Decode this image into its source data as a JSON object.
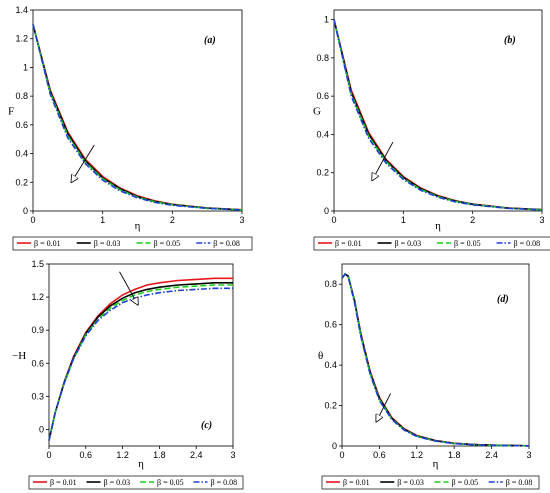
{
  "chart_data": [
    {
      "type": "line",
      "panel_label": "(a)",
      "xlabel": "η",
      "ylabel": "F",
      "xlim": [
        0,
        3
      ],
      "ylim": [
        0,
        1.4
      ],
      "xticks": [
        "0",
        "1",
        "2",
        "3"
      ],
      "yticks": [
        "0",
        "0.2",
        "0.4",
        "0.6",
        "0.8",
        "1",
        "1.2",
        "1.4"
      ],
      "x": [
        0,
        0.25,
        0.5,
        0.75,
        1.0,
        1.25,
        1.5,
        1.75,
        2.0,
        2.5,
        3.0
      ],
      "series": [
        {
          "name": "β = 0.01",
          "values": [
            1.3,
            0.84,
            0.55,
            0.36,
            0.24,
            0.16,
            0.105,
            0.07,
            0.047,
            0.021,
            0.009
          ]
        },
        {
          "name": "β = 0.03",
          "values": [
            1.3,
            0.83,
            0.54,
            0.35,
            0.23,
            0.155,
            0.1,
            0.067,
            0.045,
            0.02,
            0.008
          ]
        },
        {
          "name": "β = 0.05",
          "values": [
            1.3,
            0.82,
            0.525,
            0.34,
            0.225,
            0.148,
            0.097,
            0.064,
            0.043,
            0.019,
            0.008
          ]
        },
        {
          "name": "β = 0.08",
          "values": [
            1.3,
            0.81,
            0.51,
            0.33,
            0.215,
            0.14,
            0.092,
            0.06,
            0.04,
            0.018,
            0.007
          ]
        }
      ],
      "arrow": {
        "from": [
          0.88,
          0.46
        ],
        "to": [
          0.55,
          0.2
        ]
      },
      "legend_position": "below"
    },
    {
      "type": "line",
      "panel_label": "(b)",
      "xlabel": "η",
      "ylabel": "G",
      "xlim": [
        0,
        3
      ],
      "ylim": [
        0,
        1.05
      ],
      "xticks": [
        "0",
        "1",
        "2",
        "3"
      ],
      "yticks": [
        "0",
        "0.2",
        "0.4",
        "0.6",
        "0.8",
        "1"
      ],
      "x": [
        0,
        0.25,
        0.5,
        0.75,
        1.0,
        1.25,
        1.5,
        1.75,
        2.0,
        2.5,
        3.0
      ],
      "series": [
        {
          "name": "β = 0.01",
          "values": [
            1.0,
            0.63,
            0.41,
            0.27,
            0.18,
            0.12,
            0.08,
            0.054,
            0.036,
            0.016,
            0.007
          ]
        },
        {
          "name": "β = 0.03",
          "values": [
            1.0,
            0.62,
            0.4,
            0.265,
            0.175,
            0.117,
            0.078,
            0.052,
            0.035,
            0.015,
            0.007
          ]
        },
        {
          "name": "β = 0.05",
          "values": [
            1.0,
            0.61,
            0.39,
            0.258,
            0.17,
            0.113,
            0.075,
            0.05,
            0.034,
            0.015,
            0.006
          ]
        },
        {
          "name": "β = 0.08",
          "values": [
            1.0,
            0.6,
            0.38,
            0.25,
            0.165,
            0.108,
            0.072,
            0.048,
            0.032,
            0.014,
            0.006
          ]
        }
      ],
      "arrow": {
        "from": [
          0.85,
          0.36
        ],
        "to": [
          0.55,
          0.16
        ]
      },
      "legend_position": "below"
    },
    {
      "type": "line",
      "panel_label": "(c)",
      "xlabel": "η",
      "ylabel": "−H",
      "xlim": [
        0,
        3
      ],
      "ylim": [
        -0.15,
        1.5
      ],
      "xticks": [
        "0",
        "0.6",
        "1.2",
        "1.8",
        "2.4",
        "3"
      ],
      "yticks": [
        "0",
        "0.3",
        "0.6",
        "0.9",
        "1.2",
        "1.5"
      ],
      "x": [
        0,
        0.1,
        0.25,
        0.4,
        0.6,
        0.8,
        1.0,
        1.2,
        1.4,
        1.6,
        1.8,
        2.1,
        2.4,
        2.7,
        3.0
      ],
      "series": [
        {
          "name": "β = 0.01",
          "values": [
            -0.1,
            0.15,
            0.43,
            0.66,
            0.88,
            1.03,
            1.14,
            1.22,
            1.27,
            1.31,
            1.33,
            1.35,
            1.36,
            1.37,
            1.37
          ]
        },
        {
          "name": "β = 0.03",
          "values": [
            -0.1,
            0.15,
            0.43,
            0.65,
            0.87,
            1.02,
            1.12,
            1.19,
            1.24,
            1.27,
            1.29,
            1.31,
            1.32,
            1.33,
            1.33
          ]
        },
        {
          "name": "β = 0.05",
          "values": [
            -0.1,
            0.15,
            0.42,
            0.64,
            0.86,
            1.0,
            1.1,
            1.17,
            1.22,
            1.25,
            1.27,
            1.29,
            1.3,
            1.31,
            1.31
          ]
        },
        {
          "name": "β = 0.08",
          "values": [
            -0.1,
            0.15,
            0.42,
            0.64,
            0.85,
            0.99,
            1.08,
            1.15,
            1.19,
            1.22,
            1.24,
            1.26,
            1.27,
            1.28,
            1.28
          ]
        }
      ],
      "arrow": {
        "from": [
          1.15,
          1.43
        ],
        "to": [
          1.45,
          1.13
        ]
      },
      "legend_position": "below"
    },
    {
      "type": "line",
      "panel_label": "(d)",
      "xlabel": "η",
      "ylabel": "θ",
      "xlim": [
        0,
        3
      ],
      "ylim": [
        0,
        0.9
      ],
      "xticks": [
        "0",
        "0.6",
        "1.2",
        "1.8",
        "2.4",
        "3"
      ],
      "yticks": [
        "0",
        "0.2",
        "0.4",
        "0.6",
        "0.8"
      ],
      "x": [
        0,
        0.05,
        0.1,
        0.2,
        0.3,
        0.45,
        0.6,
        0.8,
        1.0,
        1.2,
        1.5,
        1.8,
        2.2,
        2.6,
        3.0
      ],
      "series": [
        {
          "name": "β = 0.01",
          "values": [
            0.83,
            0.85,
            0.84,
            0.72,
            0.56,
            0.37,
            0.24,
            0.14,
            0.085,
            0.052,
            0.027,
            0.014,
            0.006,
            0.003,
            0.001
          ]
        },
        {
          "name": "β = 0.03",
          "values": [
            0.83,
            0.85,
            0.84,
            0.72,
            0.555,
            0.365,
            0.235,
            0.137,
            0.083,
            0.05,
            0.026,
            0.013,
            0.006,
            0.003,
            0.001
          ]
        },
        {
          "name": "β = 0.05",
          "values": [
            0.83,
            0.85,
            0.84,
            0.715,
            0.55,
            0.36,
            0.23,
            0.133,
            0.08,
            0.048,
            0.025,
            0.013,
            0.005,
            0.002,
            0.001
          ]
        },
        {
          "name": "β = 0.08",
          "values": [
            0.83,
            0.85,
            0.835,
            0.71,
            0.545,
            0.355,
            0.225,
            0.13,
            0.078,
            0.047,
            0.024,
            0.012,
            0.005,
            0.002,
            0.001
          ]
        }
      ],
      "arrow": {
        "from": [
          0.78,
          0.26
        ],
        "to": [
          0.55,
          0.12
        ]
      },
      "legend_position": "below"
    }
  ],
  "legend": [
    {
      "label": "β = 0.01",
      "color": "#e8141c",
      "dash": "solid"
    },
    {
      "label": "β = 0.03",
      "color": "#000000",
      "dash": "solid"
    },
    {
      "label": "β = 0.05",
      "color": "#19d119",
      "dash": "dash"
    },
    {
      "label": "β = 0.08",
      "color": "#1f3fd6",
      "dash": "dashdot"
    }
  ]
}
